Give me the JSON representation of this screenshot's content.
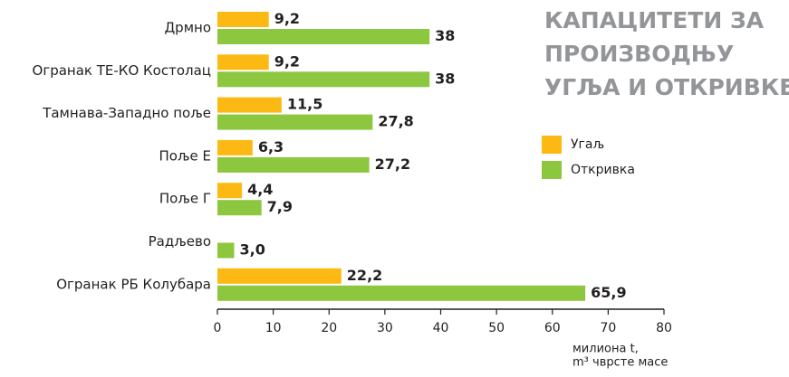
{
  "chart_data": {
    "type": "bar",
    "orientation": "horizontal",
    "title": [
      "КАПАЦИТЕТИ ЗА",
      "ПРОИЗВОДЊУ",
      "УГЉА И ОТКРИВКЕ"
    ],
    "categories": [
      "Дрмно",
      "Огранак ТЕ-КО Костолац",
      "Тамнава-Западно поље",
      "Поље Е",
      "Поље Г",
      "Радљево",
      "Огранак РБ Колубара"
    ],
    "series": [
      {
        "name": "Угаљ",
        "color": "#fdb913",
        "values": [
          9.2,
          9.2,
          11.5,
          6.3,
          4.4,
          null,
          22.2
        ],
        "value_labels": [
          "9,2",
          "9,2",
          "11,5",
          "6,3",
          "4,4",
          null,
          "22,2"
        ]
      },
      {
        "name": "Откривка",
        "color": "#8dc63f",
        "values": [
          38,
          38,
          27.8,
          27.2,
          7.9,
          3.0,
          65.9
        ],
        "value_labels": [
          "38",
          "38",
          "27,8",
          "27,2",
          "7,9",
          "3,0",
          "65,9"
        ]
      }
    ],
    "xlim": [
      0,
      80
    ],
    "xticks": [
      0,
      10,
      20,
      30,
      40,
      50,
      60,
      70,
      80
    ],
    "x_label": [
      "милиона t,",
      "m³ чврсте масе"
    ]
  }
}
